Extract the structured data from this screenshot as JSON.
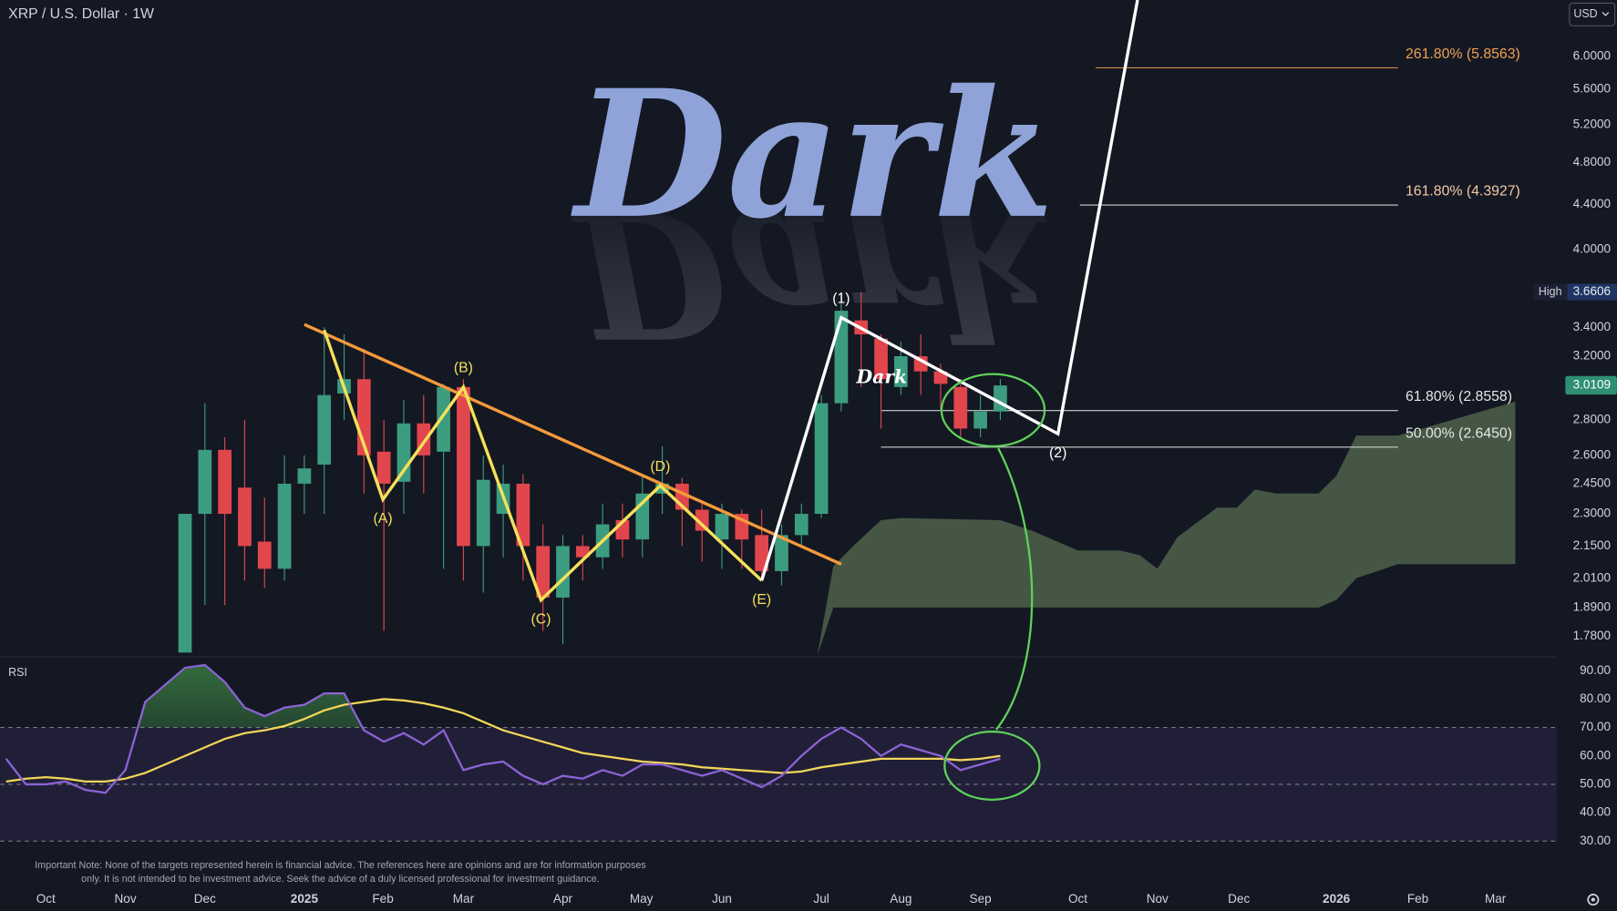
{
  "chart_data": {
    "type": "candlestick",
    "title": "XRP / U.S. Dollar · 1W",
    "currency": "USD",
    "watermark": "Dark",
    "small_watermark": "Dark",
    "log_scale": true,
    "ylim": [
      1.706,
      6.75
    ],
    "yticks": [
      {
        "value": 6,
        "label": "6.0000"
      },
      {
        "value": 5.6,
        "label": "5.6000"
      },
      {
        "value": 5.2,
        "label": "5.2000"
      },
      {
        "value": 4.8,
        "label": "4.8000"
      },
      {
        "value": 4.4,
        "label": "4.4000"
      },
      {
        "value": 4,
        "label": "4.0000"
      },
      {
        "value": 3.4,
        "label": "3.4000"
      },
      {
        "value": 3.2,
        "label": "3.2000"
      },
      {
        "value": 2.8,
        "label": "2.8000"
      },
      {
        "value": 2.6,
        "label": "2.6000"
      },
      {
        "value": 2.45,
        "label": "2.4500"
      },
      {
        "value": 2.3,
        "label": "2.3000"
      },
      {
        "value": 2.15,
        "label": "2.1500"
      },
      {
        "value": 2.01,
        "label": "2.0100"
      },
      {
        "value": 1.89,
        "label": "1.8900"
      },
      {
        "value": 1.78,
        "label": "1.7800"
      }
    ],
    "xlim": [
      -9.3,
      69
    ],
    "xticks": [
      {
        "value": -7,
        "label": "Oct"
      },
      {
        "value": -3,
        "label": "Nov"
      },
      {
        "value": 1,
        "label": "Dec"
      },
      {
        "value": 6,
        "label": "2025"
      },
      {
        "value": 9.95,
        "label": "Feb"
      },
      {
        "value": 14,
        "label": "Mar"
      },
      {
        "value": 19,
        "label": "Apr"
      },
      {
        "value": 22.95,
        "label": "May"
      },
      {
        "value": 27,
        "label": "Jun"
      },
      {
        "value": 32,
        "label": "Jul"
      },
      {
        "value": 36,
        "label": "Aug"
      },
      {
        "value": 40,
        "label": "Sep"
      },
      {
        "value": 44.9,
        "label": "Oct"
      },
      {
        "value": 48.9,
        "label": "Nov"
      },
      {
        "value": 53,
        "label": "Dec"
      },
      {
        "value": 57.9,
        "label": "2026"
      },
      {
        "value": 62,
        "label": "Feb"
      },
      {
        "value": 65.9,
        "label": "Mar"
      }
    ],
    "up_color": "#3c9c80",
    "down_color": "#e2464d",
    "candles": {
      "x": [
        0,
        1,
        2,
        3,
        4,
        5,
        6,
        7,
        8,
        9,
        10,
        11,
        12,
        13,
        14,
        15,
        16,
        17,
        18,
        19,
        20,
        21,
        22,
        23,
        24,
        25,
        26,
        27,
        28,
        29,
        30,
        31,
        32,
        33,
        34,
        35,
        36,
        37,
        38,
        39,
        40,
        41
      ],
      "open": [
        1.72,
        2.3,
        2.63,
        2.43,
        2.17,
        2.05,
        2.45,
        2.55,
        2.96,
        3.05,
        2.62,
        2.46,
        2.78,
        2.62,
        3.0,
        2.15,
        2.3,
        2.45,
        2.15,
        1.93,
        2.15,
        2.1,
        2.27,
        2.18,
        2.4,
        2.45,
        2.32,
        2.18,
        2.3,
        2.2,
        2.04,
        2.2,
        2.3,
        2.9,
        3.45,
        3.32,
        3.0,
        3.2,
        3.1,
        3.0,
        2.75,
        2.85
      ],
      "high": [
        2.3,
        2.9,
        2.7,
        2.8,
        2.38,
        2.6,
        2.6,
        3.4,
        3.35,
        3.25,
        2.8,
        2.92,
        2.95,
        3.02,
        3.05,
        2.6,
        2.55,
        2.5,
        2.25,
        2.2,
        2.2,
        2.35,
        2.35,
        2.5,
        2.65,
        2.48,
        2.35,
        2.35,
        2.32,
        2.32,
        2.25,
        2.35,
        2.95,
        3.66,
        3.66,
        3.35,
        3.3,
        3.35,
        3.15,
        3.05,
        2.95,
        3.05
      ],
      "low": [
        1.72,
        1.9,
        1.9,
        2.0,
        1.97,
        2.0,
        2.3,
        2.3,
        2.8,
        2.4,
        1.8,
        2.3,
        2.4,
        2.05,
        2.0,
        1.95,
        2.1,
        2.0,
        1.8,
        1.75,
        2.0,
        2.05,
        2.1,
        2.1,
        2.3,
        2.15,
        2.08,
        2.05,
        2.05,
        2.0,
        1.98,
        2.15,
        2.28,
        2.85,
        3.0,
        2.75,
        2.95,
        2.95,
        2.85,
        2.7,
        2.7,
        2.8
      ],
      "close": [
        2.3,
        2.63,
        2.3,
        2.15,
        2.05,
        2.45,
        2.53,
        2.95,
        3.05,
        2.6,
        2.45,
        2.78,
        2.6,
        3.0,
        2.15,
        2.47,
        2.45,
        2.15,
        1.93,
        2.15,
        2.1,
        2.25,
        2.18,
        2.4,
        2.45,
        2.32,
        2.22,
        2.3,
        2.18,
        2.04,
        2.2,
        2.3,
        2.9,
        3.52,
        3.35,
        3.05,
        3.2,
        3.1,
        3.02,
        2.75,
        2.85,
        3.01
      ]
    },
    "high": {
      "label": "High",
      "value": 3.6606
    },
    "last": 3.0109,
    "waves": [
      {
        "color": "#f5e15a",
        "points": [
          {
            "x": 7,
            "y": 3.38
          },
          {
            "x": 9.95,
            "y": 2.37,
            "label": "(A)"
          },
          {
            "x": 14,
            "y": 3.0,
            "label": "(B)"
          },
          {
            "x": 17.9,
            "y": 1.92,
            "label": "(C)"
          },
          {
            "x": 23.9,
            "y": 2.44,
            "label": "(D)"
          },
          {
            "x": 29,
            "y": 2.0,
            "label": "(E)"
          }
        ]
      },
      {
        "color": "#ffffff",
        "points": [
          {
            "x": 29,
            "y": 2.0
          },
          {
            "x": 33,
            "y": 3.47,
            "label": "(1)"
          },
          {
            "x": 43.9,
            "y": 2.72,
            "label": "(2)"
          },
          {
            "x": 47.9,
            "y": 6.75
          }
        ]
      }
    ],
    "trendline": {
      "color": "#f59a3c",
      "points": [
        {
          "x": 6,
          "y": 3.42
        },
        {
          "x": 33,
          "y": 2.07
        }
      ]
    },
    "fib_levels": [
      {
        "label": "261.80% (5.8563)",
        "value": 5.8563,
        "color": "#f0a050",
        "line_color": "#d08a40",
        "x_start": 45.8,
        "x_end": 61
      },
      {
        "label": "161.80% (4.3927)",
        "value": 4.3927,
        "color": "#f6c9a8",
        "line_color": "#d0d0d0",
        "x_start": 45,
        "x_end": 61
      },
      {
        "label": "61.80% (2.8558)",
        "value": 2.8558,
        "color": "#e6e6e6",
        "line_color": "#d0d0d0",
        "x_start": 35,
        "x_end": 61
      },
      {
        "label": "50.00% (2.6450)",
        "value": 2.645,
        "color": "#e6e6e6",
        "line_color": "#d0d0d0",
        "x_start": 35,
        "x_end": 61
      }
    ],
    "cloud": {
      "color": "#4a5e48",
      "x": [
        31.8,
        32.6,
        33.6,
        35,
        36,
        41,
        42.6,
        44.9,
        47,
        48,
        48.9,
        49.9,
        51.9,
        52.9,
        53.8,
        54.9,
        57,
        57.9,
        58.9,
        61,
        66.9
      ],
      "upper": [
        1.71,
        2.06,
        2.15,
        2.27,
        2.28,
        2.27,
        2.22,
        2.13,
        2.13,
        2.11,
        2.05,
        2.19,
        2.33,
        2.33,
        2.42,
        2.4,
        2.4,
        2.49,
        2.71,
        2.71,
        2.91
      ],
      "lower": [
        1.71,
        1.89,
        1.89,
        1.89,
        1.89,
        1.89,
        1.89,
        1.89,
        1.89,
        1.89,
        1.89,
        1.89,
        1.89,
        1.89,
        1.89,
        1.89,
        1.89,
        1.92,
        2.01,
        2.07,
        2.07
      ]
    },
    "rsi": {
      "label": "RSI",
      "ylim": [
        25,
        95
      ],
      "yticks": [
        {
          "value": 90,
          "label": "90.00"
        },
        {
          "value": 80,
          "label": "80.00"
        },
        {
          "value": 70,
          "label": "70.00"
        },
        {
          "value": 60,
          "label": "60.00"
        },
        {
          "value": 50,
          "label": "50.00"
        },
        {
          "value": 40,
          "label": "40.00"
        },
        {
          "value": 30,
          "label": "30.00"
        }
      ],
      "levels": [
        70,
        50,
        30
      ],
      "color": "#8b63d6",
      "ma_color": "#f2d65a",
      "x": [
        -9,
        -8,
        -7,
        -6,
        -5,
        -4,
        -3,
        -2,
        -1,
        0,
        1,
        2,
        3,
        4,
        5,
        6,
        7,
        8,
        9,
        10,
        11,
        12,
        13,
        14,
        15,
        16,
        17,
        18,
        19,
        20,
        21,
        22,
        23,
        24,
        25,
        26,
        27,
        28,
        29,
        30,
        31,
        32,
        33,
        34,
        35,
        36,
        37,
        38,
        39,
        40,
        41
      ],
      "values": [
        59,
        50,
        50,
        51,
        48,
        47,
        55,
        79,
        85,
        91,
        92,
        86,
        77,
        74,
        77,
        78,
        82,
        82,
        69,
        65,
        68,
        64,
        69,
        55,
        57,
        58,
        53,
        50,
        53,
        52,
        55,
        53,
        57,
        57,
        55,
        53,
        55,
        52,
        49,
        53,
        60,
        66,
        70,
        66,
        60,
        64,
        62,
        60,
        55,
        57,
        59
      ],
      "ma": [
        51,
        52,
        52.5,
        52,
        51,
        51,
        52,
        54,
        57,
        60,
        63,
        66,
        68,
        69,
        70.5,
        73,
        76,
        78,
        79,
        80,
        79.5,
        78.5,
        77,
        75,
        72,
        69,
        67,
        65,
        63,
        61,
        60,
        59,
        58,
        57.5,
        57,
        56,
        55.5,
        55,
        54.5,
        54,
        54.5,
        56,
        57,
        58,
        59,
        59,
        59,
        59,
        58.5,
        59,
        60
      ]
    },
    "note": [
      "Important Note: None of the targets represented herein is financial advice. The references here are opinions and are for information purposes",
      "only. It is not intended to be investment advice. Seek the advice of a duly licensed professional for investment guidance."
    ]
  }
}
